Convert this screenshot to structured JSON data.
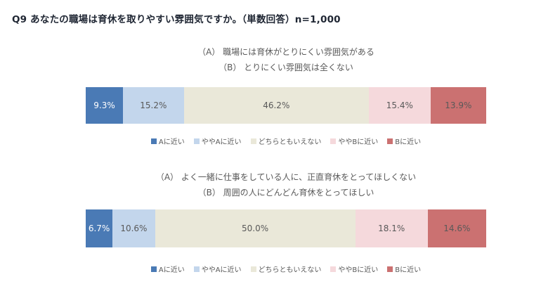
{
  "title": "Q9 あなたの職場は育休を取りやすい雰囲気ですか。（単数回答）n=1,000",
  "legend": {
    "items": [
      {
        "label": "Aに近い",
        "color": "#4a7ab5"
      },
      {
        "label": "ややAに近い",
        "color": "#c3d6ec"
      },
      {
        "label": "どちらともいえない",
        "color": "#eae8d9"
      },
      {
        "label": "ややBに近い",
        "color": "#f5d9dc"
      },
      {
        "label": "Bに近い",
        "color": "#cb7171"
      }
    ]
  },
  "chart_data": [
    {
      "type": "bar",
      "orientation": "horizontal-stacked",
      "title_lines": [
        "（A） 職場には育休がとりにくい雰囲気がある",
        "（B） とりにくい雰囲気は全くない"
      ],
      "categories": [
        "Aに近い",
        "ややAに近い",
        "どちらともいえない",
        "ややBに近い",
        "Bに近い"
      ],
      "values": [
        9.3,
        15.2,
        46.2,
        15.4,
        13.9
      ],
      "unit": "%",
      "xlim": [
        0,
        100
      ],
      "colors": [
        "#4a7ab5",
        "#c3d6ec",
        "#eae8d9",
        "#f5d9dc",
        "#cb7171"
      ],
      "label_colors": [
        "#ffffff",
        "#595959",
        "#595959",
        "#595959",
        "#595959"
      ],
      "legend_position": "bottom",
      "grid": false
    },
    {
      "type": "bar",
      "orientation": "horizontal-stacked",
      "title_lines": [
        "（A） よく一緒に仕事をしている人に、正直育休をとってほしくない",
        "（B） 周囲の人にどんどん育休をとってほしい"
      ],
      "categories": [
        "Aに近い",
        "ややAに近い",
        "どちらともいえない",
        "ややBに近い",
        "Bに近い"
      ],
      "values": [
        6.7,
        10.6,
        50.0,
        18.1,
        14.6
      ],
      "unit": "%",
      "xlim": [
        0,
        100
      ],
      "colors": [
        "#4a7ab5",
        "#c3d6ec",
        "#eae8d9",
        "#f5d9dc",
        "#cb7171"
      ],
      "label_colors": [
        "#ffffff",
        "#595959",
        "#595959",
        "#595959",
        "#595959"
      ],
      "legend_position": "bottom",
      "grid": false
    }
  ]
}
